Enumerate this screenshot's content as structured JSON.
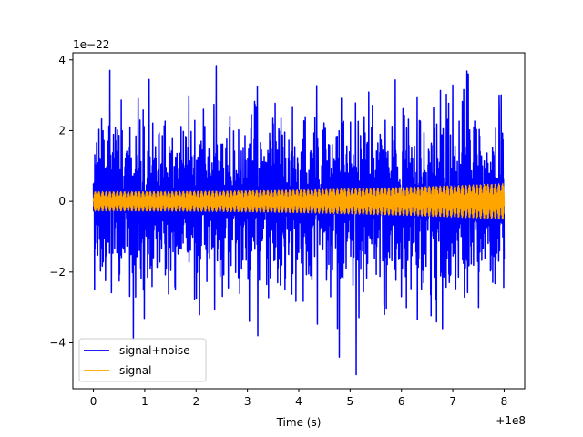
{
  "chart_data": {
    "type": "line",
    "xlabel": "Time (s)",
    "ylabel": "",
    "x_offset_label": "+1e8",
    "y_scale_label": "1e−22",
    "xlim": [
      -0.4,
      8.4
    ],
    "ylim": [
      -5.3,
      4.2
    ],
    "x_ticks": [
      0,
      1,
      2,
      3,
      4,
      5,
      6,
      7,
      8
    ],
    "x_tick_labels": [
      "0",
      "1",
      "2",
      "3",
      "4",
      "5",
      "6",
      "7",
      "8"
    ],
    "y_ticks": [
      -4,
      -2,
      0,
      2,
      4
    ],
    "y_tick_labels": [
      "−4",
      "−2",
      "0",
      "2",
      "4"
    ],
    "grid": false,
    "legend_position": "lower-left",
    "series": [
      {
        "name": "signal+noise",
        "color": "#0000ff",
        "kind": "noisy-oscillation",
        "x_range": [
          0,
          8
        ],
        "typical_envelope": 1.9,
        "peaks": [
          {
            "x": 0.32,
            "y": 3.7
          },
          {
            "x": 3.2,
            "y": -3.8
          },
          {
            "x": 5.12,
            "y": -4.9
          },
          {
            "x": 7.3,
            "y": 3.6
          },
          {
            "x": 6.8,
            "y": -3.6
          },
          {
            "x": 7.9,
            "y": 3.0
          }
        ]
      },
      {
        "name": "signal",
        "color": "#ffa500",
        "kind": "chirp",
        "x_range": [
          0,
          8
        ],
        "amplitude_start": 0.27,
        "amplitude_end": 0.5
      }
    ]
  }
}
